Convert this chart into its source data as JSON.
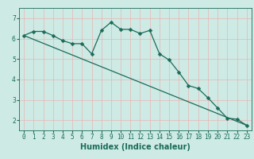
{
  "xlabel": "Humidex (Indice chaleur)",
  "bg_color": "#ceeae4",
  "line_color": "#1a6b5a",
  "grid_color": "#e8b4b4",
  "xlim": [
    -0.5,
    23.5
  ],
  "ylim": [
    1.5,
    7.5
  ],
  "xticks": [
    0,
    1,
    2,
    3,
    4,
    5,
    6,
    7,
    8,
    9,
    10,
    11,
    12,
    13,
    14,
    15,
    16,
    17,
    18,
    19,
    20,
    21,
    22,
    23
  ],
  "yticks": [
    2,
    3,
    4,
    5,
    6,
    7
  ],
  "line1_x": [
    0,
    1,
    2,
    3,
    4,
    5,
    6,
    7,
    8,
    9,
    10,
    11,
    12,
    13,
    14,
    15,
    16,
    17,
    18,
    19,
    20,
    21,
    22,
    23
  ],
  "line1_y": [
    6.15,
    6.35,
    6.35,
    6.15,
    5.9,
    5.75,
    5.75,
    5.25,
    6.4,
    6.8,
    6.45,
    6.45,
    6.25,
    6.4,
    5.25,
    4.95,
    4.35,
    3.7,
    3.55,
    3.1,
    2.6,
    2.1,
    2.05,
    1.75
  ],
  "line2_x": [
    0,
    23
  ],
  "line2_y": [
    6.15,
    1.75
  ],
  "markersize": 2.5,
  "linewidth": 0.9,
  "xlabel_fontsize": 7,
  "tick_fontsize": 5.5
}
